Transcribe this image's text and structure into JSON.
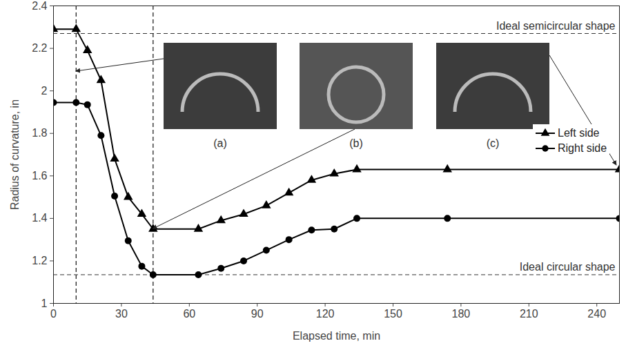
{
  "chart_data": {
    "type": "line",
    "xlabel": "Elapsed time, min",
    "ylabel": "Radius of curvature, in",
    "x": [
      0,
      10,
      15,
      21,
      27,
      33,
      39,
      44,
      64,
      74,
      84,
      94,
      104,
      114,
      124,
      134,
      174,
      250
    ],
    "series": [
      {
        "name": "Left side",
        "color": "#000000",
        "marker": "triangle",
        "line_style": "solid",
        "values": [
          2.29,
          2.29,
          2.19,
          2.05,
          1.68,
          1.5,
          1.42,
          1.35,
          1.35,
          1.39,
          1.42,
          1.46,
          1.52,
          1.58,
          1.61,
          1.63,
          1.63,
          1.63
        ]
      },
      {
        "name": "Right side",
        "color": "#000000",
        "marker": "circle",
        "line_style": "solid",
        "values": [
          1.945,
          1.945,
          1.935,
          1.79,
          1.505,
          1.295,
          1.175,
          1.135,
          1.135,
          1.165,
          1.2,
          1.25,
          1.3,
          1.345,
          1.35,
          1.4,
          1.4,
          1.4
        ]
      }
    ],
    "xlim": [
      0,
      250
    ],
    "xticks": [
      0,
      30,
      60,
      90,
      120,
      150,
      180,
      210,
      240
    ],
    "ylim": [
      1,
      2.4
    ],
    "yticks": [
      1,
      1.2,
      1.4,
      1.6,
      1.8,
      2,
      2.2,
      2.4
    ],
    "hlines": [
      {
        "y": 2.27,
        "label": "Ideal semicircular shape",
        "line_style": "dashed"
      },
      {
        "y": 1.135,
        "label": "Ideal circular shape",
        "line_style": "dashed"
      }
    ],
    "vlines": [
      {
        "x": 10,
        "line_style": "dashed"
      },
      {
        "x": 44,
        "line_style": "dashed"
      }
    ],
    "annotations": [
      "(a)",
      "(b)",
      "(c)"
    ],
    "legend": "right",
    "grid": false
  }
}
